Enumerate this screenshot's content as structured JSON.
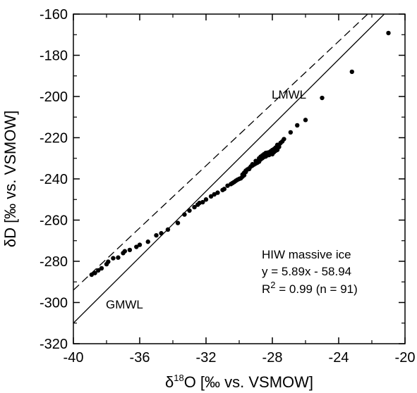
{
  "chart_data": {
    "type": "scatter",
    "xlim": [
      -40,
      -20
    ],
    "ylim": [
      -320,
      -160
    ],
    "xticks": [
      "-40",
      "-36",
      "-32",
      "-28",
      "-24",
      "-20"
    ],
    "yticks": [
      "-160",
      "-180",
      "-200",
      "-220",
      "-240",
      "-260",
      "-280",
      "-300",
      "-320"
    ],
    "xlabel": {
      "delta": "δ",
      "sup": "18",
      "rest": "O [‰ vs. VSMOW]"
    },
    "ylabel": "δD [‰ vs. VSMOW]",
    "grid": false,
    "lines": [
      {
        "name": "GMWL",
        "style": "solid",
        "slope": 8,
        "intercept": 10
      },
      {
        "name": "LMWL",
        "style": "dashed",
        "slope": 7.55,
        "intercept": 8.0
      }
    ],
    "annotation": {
      "title": "HIW massive ice",
      "equation": "y = 5.89x - 58.94",
      "r2_prefix": "R",
      "r2_sup": "2",
      "r2_rest": " = 0.99 (n = 91)"
    },
    "points": [
      [
        -38.9,
        -286.5
      ],
      [
        -38.7,
        -285.7
      ],
      [
        -38.5,
        -284.4
      ],
      [
        -38.3,
        -283.4
      ],
      [
        -38.0,
        -281.4
      ],
      [
        -37.9,
        -280.2
      ],
      [
        -37.6,
        -278.5
      ],
      [
        -37.3,
        -278.2
      ],
      [
        -37.0,
        -276.0
      ],
      [
        -36.9,
        -275.1
      ],
      [
        -36.6,
        -274.5
      ],
      [
        -36.2,
        -273.0
      ],
      [
        -36.0,
        -272.0
      ],
      [
        -35.5,
        -270.5
      ],
      [
        -35.0,
        -267.4
      ],
      [
        -34.7,
        -266.4
      ],
      [
        -34.3,
        -264.6
      ],
      [
        -33.7,
        -261.4
      ],
      [
        -33.3,
        -257.3
      ],
      [
        -33.0,
        -255.4
      ],
      [
        -32.7,
        -253.7
      ],
      [
        -32.4,
        -251.7
      ],
      [
        -32.2,
        -251.3
      ],
      [
        -32.0,
        -250.0
      ],
      [
        -31.7,
        -248.5
      ],
      [
        -31.3,
        -246.7
      ],
      [
        -31.0,
        -245.4
      ],
      [
        -30.9,
        -244.9
      ],
      [
        -30.7,
        -243.3
      ],
      [
        -30.5,
        -242.5
      ],
      [
        -30.4,
        -242.0
      ],
      [
        -30.2,
        -240.9
      ],
      [
        -30.1,
        -240.4
      ],
      [
        -29.9,
        -239.7
      ],
      [
        -29.8,
        -238.9
      ],
      [
        -29.7,
        -238.2
      ],
      [
        -29.6,
        -236.6
      ],
      [
        -29.5,
        -235.4
      ],
      [
        -29.4,
        -235.2
      ],
      [
        -29.3,
        -234.0
      ],
      [
        -29.2,
        -233.5
      ],
      [
        -29.1,
        -233.0
      ],
      [
        -29.0,
        -232.5
      ],
      [
        -28.9,
        -232.1
      ],
      [
        -29.4,
        -234.9
      ],
      [
        -29.6,
        -236.0
      ],
      [
        -29.2,
        -232.9
      ],
      [
        -28.8,
        -230.0
      ],
      [
        -28.7,
        -229.2
      ],
      [
        -28.6,
        -228.6
      ],
      [
        -28.5,
        -228.0
      ],
      [
        -28.4,
        -227.4
      ],
      [
        -28.3,
        -227.3
      ],
      [
        -28.2,
        -227.1
      ],
      [
        -28.1,
        -226.6
      ],
      [
        -28.0,
        -226.0
      ],
      [
        -27.9,
        -225.5
      ],
      [
        -27.8,
        -224.8
      ],
      [
        -27.7,
        -224.2
      ],
      [
        -27.6,
        -223.5
      ],
      [
        -28.6,
        -229.9
      ],
      [
        -28.4,
        -229.1
      ],
      [
        -28.2,
        -228.4
      ],
      [
        -28.0,
        -228.0
      ],
      [
        -27.9,
        -227.0
      ],
      [
        -27.8,
        -226.3
      ],
      [
        -27.7,
        -225.9
      ],
      [
        -28.3,
        -228.5
      ],
      [
        -28.1,
        -227.8
      ],
      [
        -28.5,
        -229.3
      ],
      [
        -28.8,
        -231.6
      ],
      [
        -28.0,
        -226.8
      ],
      [
        -27.5,
        -222.5
      ],
      [
        -27.3,
        -220.7
      ],
      [
        -26.9,
        -217.4
      ],
      [
        -26.5,
        -214.0
      ],
      [
        -26.0,
        -211.4
      ],
      [
        -25.0,
        -200.7
      ],
      [
        -23.2,
        -188.0
      ],
      [
        -21.0,
        -169.2
      ],
      [
        -30.3,
        -241.5
      ],
      [
        -30.0,
        -240.0
      ],
      [
        -29.8,
        -237.9
      ],
      [
        -29.7,
        -237.0
      ],
      [
        -31.5,
        -247.5
      ],
      [
        -32.5,
        -252.5
      ],
      [
        -29.0,
        -231.3
      ],
      [
        -28.7,
        -230.5
      ],
      [
        -27.6,
        -224.5
      ],
      [
        -27.4,
        -221.8
      ],
      [
        -27.7,
        -223.5
      ]
    ]
  }
}
